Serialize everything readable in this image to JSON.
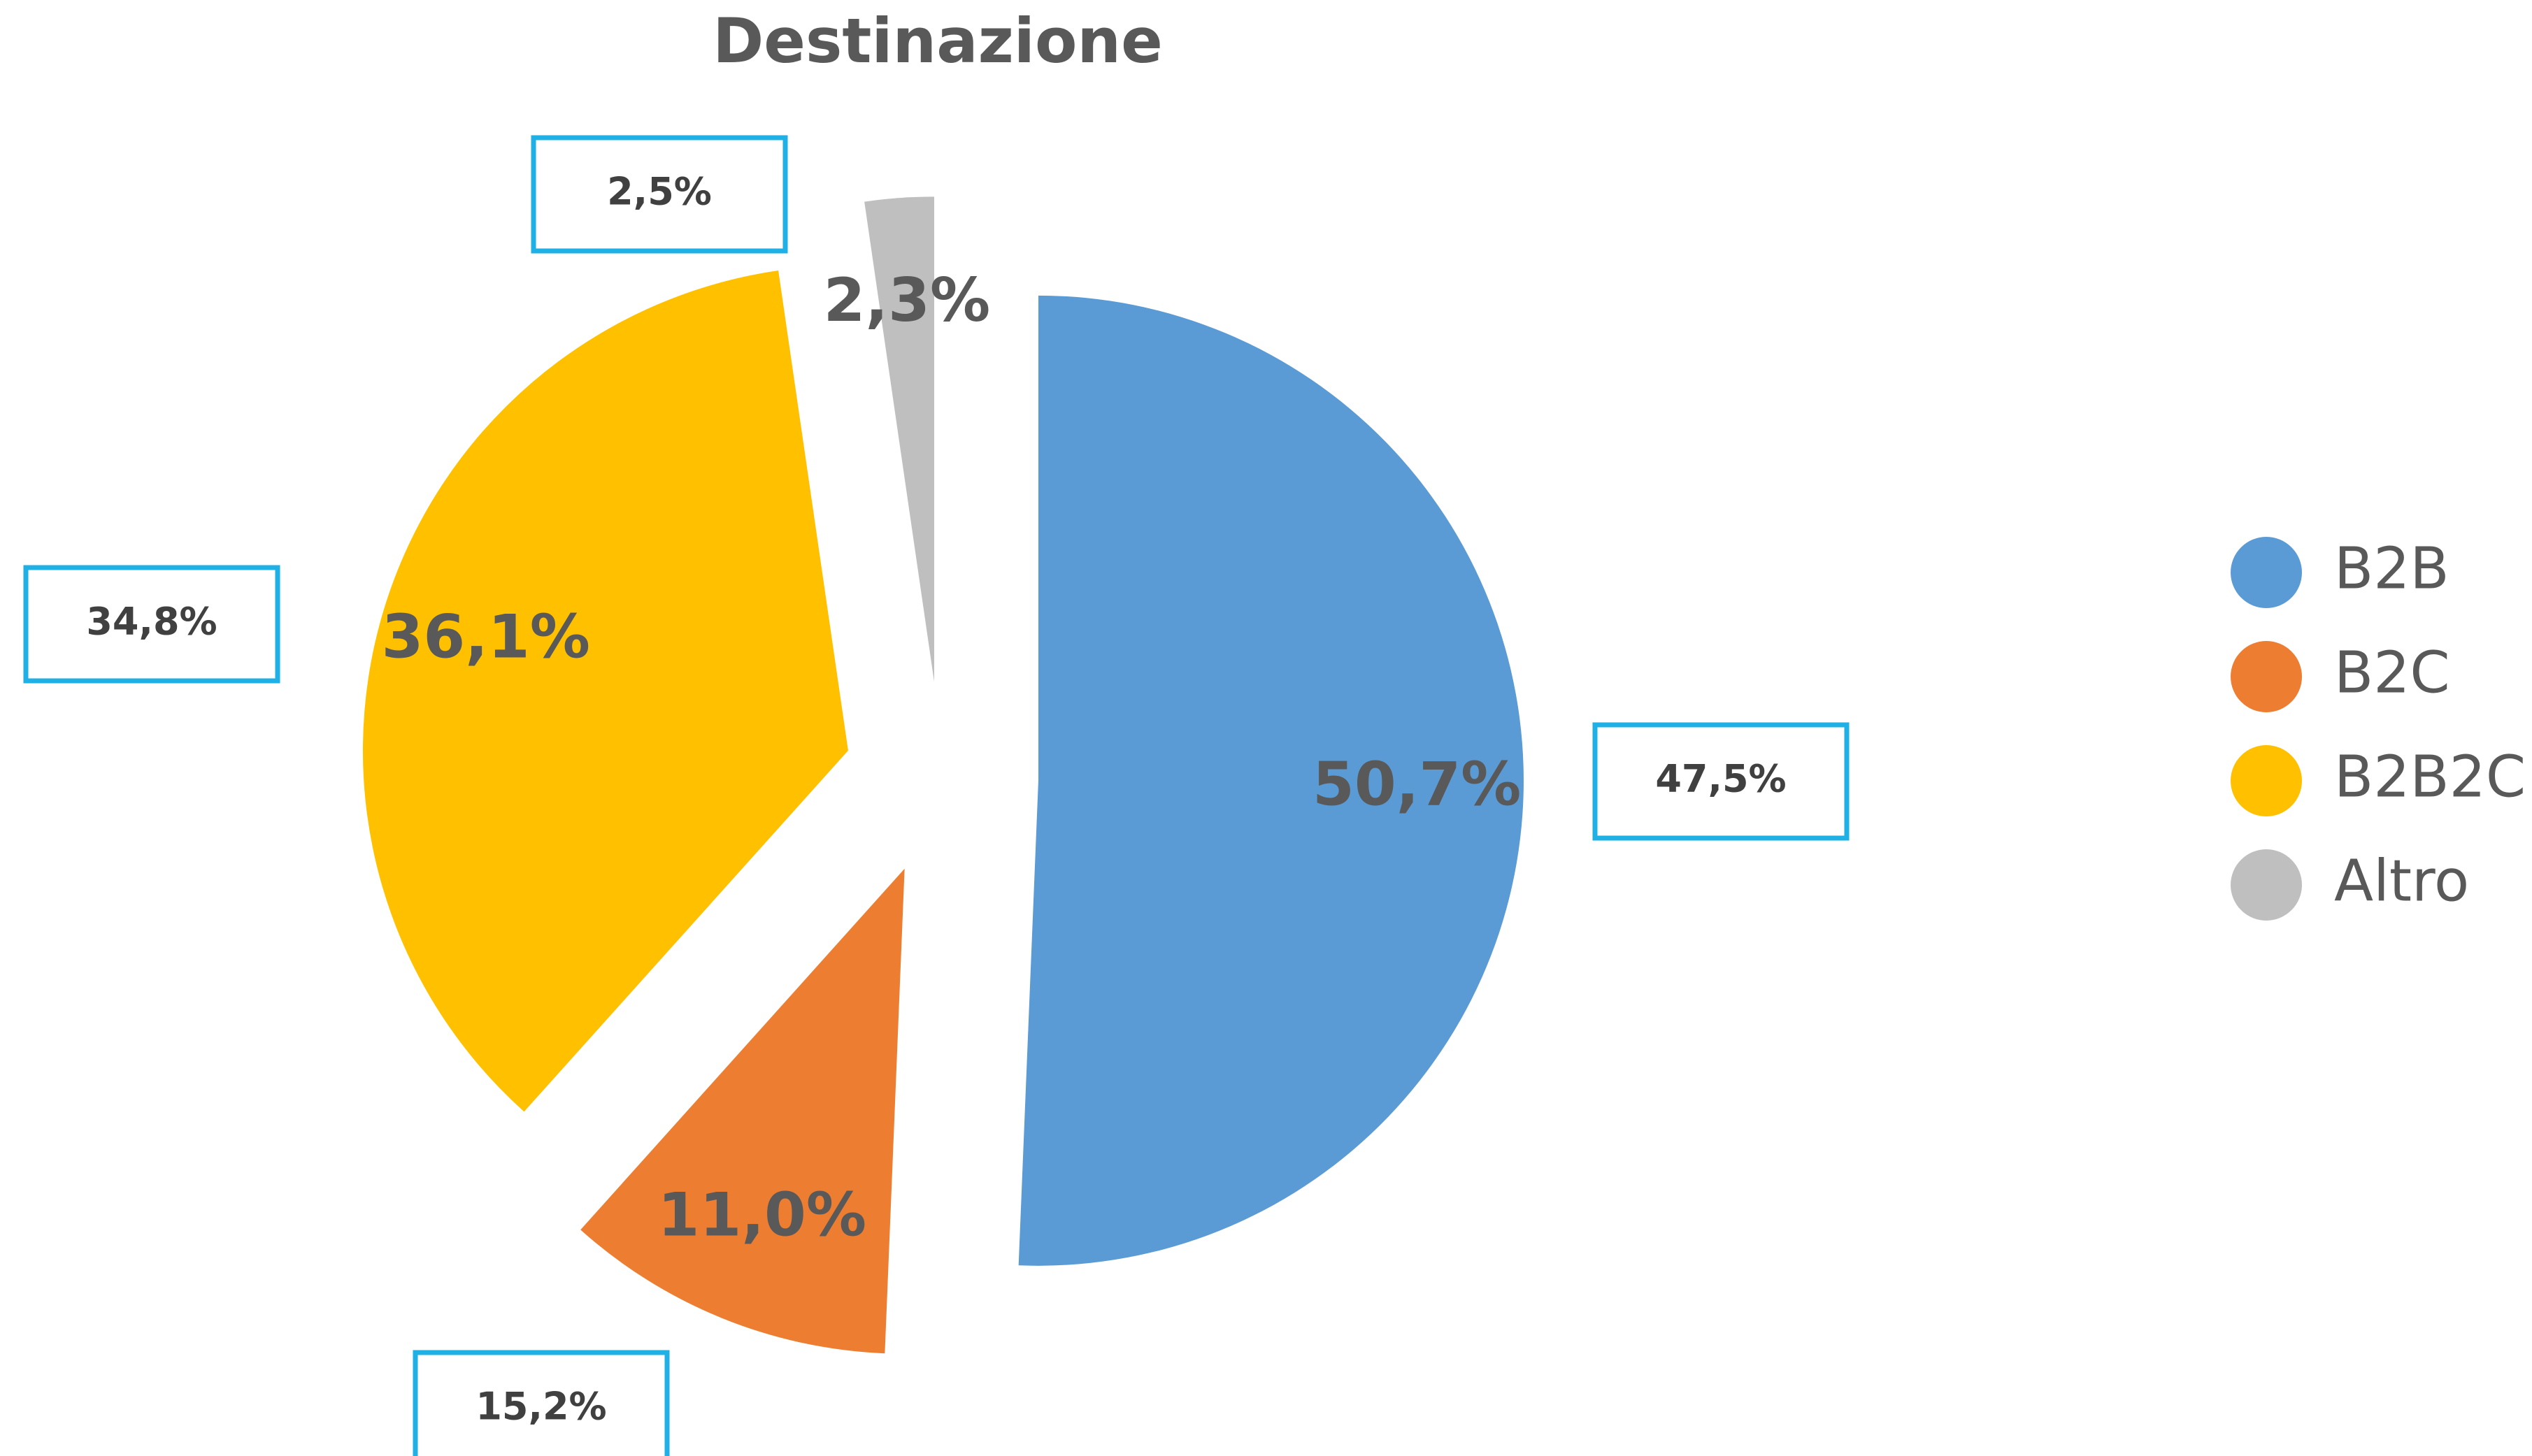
{
  "chart_data": {
    "type": "pie",
    "title": "Destinazione",
    "categories": [
      "B2B",
      "B2C",
      "B2B2C",
      "Altro"
    ],
    "values": [
      50.7,
      11.0,
      36.1,
      2.3
    ],
    "value_labels": [
      "50,7%",
      "11,0%",
      "36,1%",
      "2,3%"
    ],
    "colors": [
      "#5b9bd5",
      "#ed7d31",
      "#ffc000",
      "#bfbfbf"
    ],
    "comparison_values": [
      47.5,
      15.2,
      34.8,
      2.5
    ],
    "comparison_labels": [
      "47,5%",
      "15,2%",
      "34,8%",
      "2,5%"
    ],
    "comparison_box_color": "#1fb0e6",
    "exploded": true,
    "legend": "right"
  }
}
